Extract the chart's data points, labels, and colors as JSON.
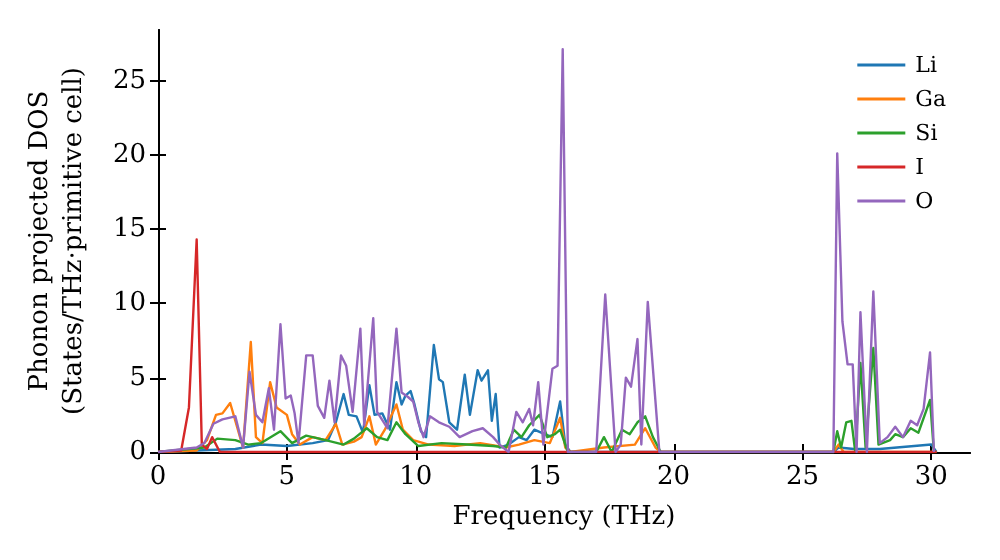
{
  "chart_data": {
    "type": "line",
    "xlabel": "Frequency (THz)",
    "ylabel": "Phonon projected DOS\n(States/THz·primitive cell)",
    "xlim": [
      0,
      31.5
    ],
    "ylim": [
      0,
      28.4
    ],
    "xticks": [
      0,
      5,
      10,
      15,
      20,
      25,
      30
    ],
    "yticks": [
      0,
      5,
      10,
      15,
      20,
      25
    ],
    "grid": false,
    "legend": "top right",
    "series": [
      {
        "name": "Li",
        "color": "#1f77b4",
        "x": [
          0,
          3,
          4,
          5,
          6,
          6.6,
          6.9,
          7.2,
          7.4,
          7.7,
          7.95,
          8.2,
          8.4,
          8.7,
          9.0,
          9.25,
          9.45,
          9.6,
          9.8,
          9.95,
          10.2,
          10.4,
          10.7,
          10.9,
          11.05,
          11.3,
          11.6,
          11.9,
          12.1,
          12.4,
          12.55,
          12.8,
          12.95,
          13.1,
          13.25,
          13.6,
          14,
          14.3,
          14.6,
          15,
          15.3,
          15.6,
          15.8,
          16,
          26.2,
          26.4,
          27,
          28,
          30,
          30.2
        ],
        "values": [
          0,
          0.2,
          0.5,
          0.4,
          0.6,
          0.8,
          2.0,
          3.9,
          2.5,
          2.4,
          1.3,
          4.5,
          2.5,
          2.6,
          1.5,
          4.7,
          3.2,
          3.8,
          4.1,
          3.2,
          1.4,
          1.0,
          7.2,
          4.9,
          4.7,
          2.0,
          1.5,
          5.2,
          2.5,
          5.5,
          4.8,
          5.5,
          2.1,
          3.9,
          0.3,
          0.5,
          1.0,
          0.8,
          1.5,
          1.2,
          1.0,
          3.4,
          0.5,
          0,
          0,
          0.3,
          0.2,
          0.2,
          0.5,
          0
        ]
      },
      {
        "name": "Ga",
        "color": "#ff7f0e",
        "x": [
          0,
          1.5,
          1.9,
          2.25,
          2.5,
          2.8,
          3.3,
          3.6,
          3.8,
          4.05,
          4.35,
          4.6,
          5.0,
          5.2,
          5.5,
          6.0,
          6.5,
          6.9,
          7.15,
          7.6,
          7.9,
          8.2,
          8.45,
          8.8,
          9.25,
          9.5,
          9.9,
          10.5,
          11.5,
          12.5,
          13.5,
          14,
          14.6,
          15.2,
          15.6,
          15.8,
          16,
          17.3,
          18.5,
          18.9,
          19.3,
          19.5,
          26.2,
          26.4,
          26.6,
          30.2
        ],
        "values": [
          0,
          0.1,
          0.8,
          2.5,
          2.6,
          3.3,
          0.3,
          7.4,
          1.0,
          0.6,
          4.7,
          3.0,
          2.5,
          1.2,
          0.5,
          1.0,
          0.8,
          1.9,
          0.5,
          0.7,
          1.0,
          2.4,
          0.5,
          1.5,
          3.2,
          1.5,
          0.8,
          0.5,
          0.4,
          0.6,
          0.3,
          0.5,
          0.8,
          0.6,
          2.3,
          0.3,
          0,
          0.3,
          0.5,
          1.6,
          0.3,
          0,
          0,
          0.5,
          0,
          0
        ]
      },
      {
        "name": "Si",
        "color": "#2ca02c",
        "x": [
          0,
          1.8,
          2.3,
          3,
          3.5,
          4,
          4.75,
          5.2,
          5.75,
          6.5,
          7.2,
          7.6,
          8.1,
          8.5,
          8.9,
          9.25,
          9.6,
          10.1,
          11,
          12,
          13,
          13.5,
          13.8,
          14.1,
          14.4,
          14.8,
          15.1,
          15.4,
          15.6,
          15.9,
          17.0,
          17.3,
          17.6,
          18.0,
          18.3,
          18.6,
          18.9,
          19.2,
          19.5,
          26.2,
          26.35,
          26.5,
          26.7,
          26.9,
          27.05,
          27.25,
          27.45,
          27.75,
          27.95,
          28.4,
          28.6,
          28.9,
          29.2,
          29.5,
          29.95,
          30.1
        ],
        "values": [
          0,
          0.3,
          0.9,
          0.8,
          0.5,
          0.6,
          1.4,
          0.6,
          1.1,
          0.8,
          0.5,
          0.9,
          1.6,
          1.0,
          0.8,
          2.0,
          1.2,
          0.4,
          0.6,
          0.5,
          0.4,
          0.3,
          1.5,
          1.0,
          1.8,
          2.5,
          1.0,
          1.2,
          1.5,
          0,
          0,
          1.0,
          0,
          1.5,
          1.2,
          2.0,
          2.4,
          1.0,
          0,
          0,
          1.4,
          0.3,
          2.0,
          2.1,
          0,
          6.0,
          0.3,
          7.0,
          0.5,
          0.8,
          1.2,
          1.0,
          1.6,
          1.3,
          3.5,
          0
        ]
      },
      {
        "name": "I",
        "color": "#d62728",
        "x": [
          0,
          0.9,
          1.2,
          1.5,
          1.7,
          1.9,
          2.1,
          2.4,
          30.2
        ],
        "values": [
          0,
          0.1,
          3.0,
          14.3,
          0.5,
          0.2,
          1.0,
          0,
          0
        ]
      },
      {
        "name": "O",
        "color": "#9467bd",
        "x": [
          0,
          1.5,
          1.8,
          2.15,
          2.5,
          3.0,
          3.3,
          3.55,
          3.8,
          4.05,
          4.3,
          4.5,
          4.75,
          4.95,
          5.15,
          5.3,
          5.45,
          5.75,
          6.0,
          6.2,
          6.45,
          6.65,
          6.85,
          7.1,
          7.3,
          7.55,
          7.85,
          8.0,
          8.35,
          8.5,
          8.9,
          9.25,
          9.45,
          9.7,
          9.9,
          10.1,
          10.3,
          10.55,
          10.9,
          11.3,
          11.7,
          12.2,
          12.6,
          13.0,
          13.25,
          13.6,
          13.9,
          14.15,
          14.4,
          14.55,
          14.75,
          14.95,
          15.3,
          15.5,
          15.7,
          15.9,
          17.0,
          17.35,
          17.75,
          17.95,
          18.15,
          18.35,
          18.6,
          18.75,
          19.0,
          19.45,
          26.2,
          26.35,
          26.55,
          26.75,
          26.95,
          27.1,
          27.25,
          27.5,
          27.75,
          28.0,
          28.3,
          28.6,
          28.9,
          29.2,
          29.45,
          29.7,
          29.95,
          30.1
        ],
        "values": [
          0,
          0.3,
          0.6,
          1.9,
          2.2,
          2.4,
          0.3,
          5.4,
          2.5,
          2.0,
          4.3,
          1.5,
          8.6,
          3.6,
          3.8,
          2.6,
          0.6,
          6.5,
          6.5,
          3.1,
          2.3,
          4.8,
          2.0,
          6.5,
          5.8,
          2.7,
          8.3,
          1.8,
          9.0,
          2.7,
          1.6,
          8.3,
          4.0,
          3.7,
          3.4,
          2.0,
          1.0,
          2.4,
          2.0,
          1.7,
          1.0,
          1.4,
          1.6,
          1.0,
          0.5,
          0,
          2.7,
          2.0,
          2.9,
          1.8,
          4.7,
          0.5,
          5.6,
          5.8,
          27.1,
          0,
          0,
          10.6,
          0,
          0.5,
          5.0,
          4.4,
          7.6,
          0.5,
          10.1,
          0,
          0,
          20.1,
          8.8,
          5.9,
          5.9,
          0,
          9.4,
          0,
          10.8,
          0.6,
          1.0,
          1.7,
          1.0,
          2.1,
          1.8,
          2.9,
          6.7,
          0
        ]
      }
    ]
  }
}
